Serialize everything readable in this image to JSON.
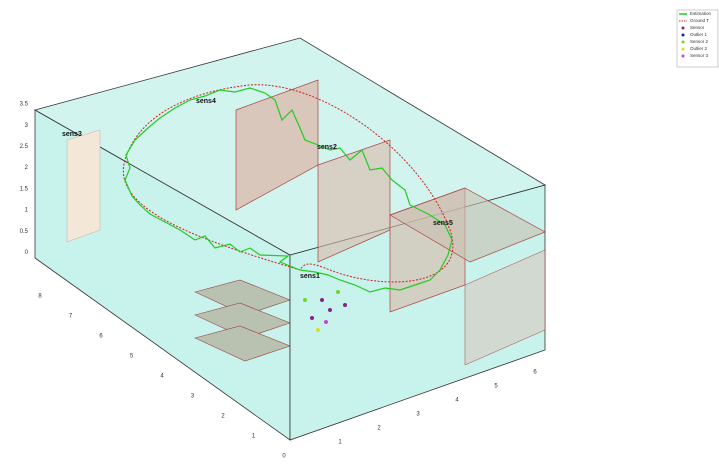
{
  "legend": [
    {
      "label": "Estimation",
      "color": "#22cc22"
    },
    {
      "label": "Ground T",
      "color": "#cc2222"
    },
    {
      "label": "Sensor",
      "color": "#882288"
    },
    {
      "label": "Outlier 1",
      "color": "#1122aa"
    },
    {
      "label": "Sensor 2",
      "color": "#66dd22"
    },
    {
      "label": "Outlier 2",
      "color": "#dddd22"
    },
    {
      "label": "Sensor 3",
      "color": "#cc44cc"
    }
  ],
  "sensors": [
    "sens1",
    "sens2",
    "sens3",
    "sens4",
    "sens5"
  ],
  "z_ticks": [
    "3.5",
    "3",
    "2.5",
    "2",
    "1.5",
    "1",
    "0.5",
    "0"
  ],
  "y_ticks": [
    "8",
    "7",
    "6",
    "5",
    "4",
    "3",
    "2",
    "1",
    "0"
  ],
  "x_ticks": [
    "1",
    "2",
    "3",
    "4",
    "5",
    "6"
  ]
}
